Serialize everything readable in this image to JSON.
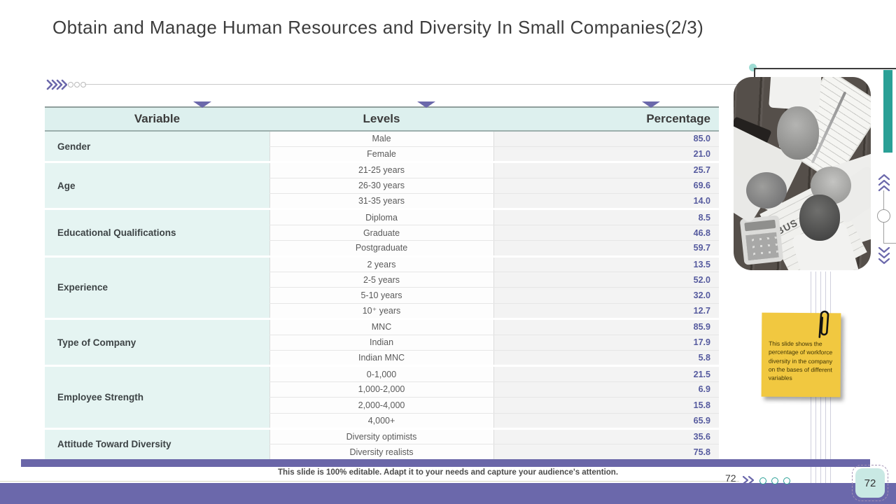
{
  "slide": {
    "title": "Obtain and Manage Human Resources and Diversity In Small Companies(2/3)",
    "footer_note": "This slide is 100% editable. Adapt it to your needs and capture your audience's attention.",
    "page_number": "72",
    "page_number_inline": "72"
  },
  "table": {
    "headers": [
      "Variable",
      "Levels",
      "Percentage"
    ],
    "groups": [
      {
        "variable": "Gender",
        "rows": [
          [
            "Male",
            "85.0"
          ],
          [
            "Female",
            "21.0"
          ]
        ]
      },
      {
        "variable": "Age",
        "rows": [
          [
            "21-25 years",
            "25.7"
          ],
          [
            "26-30 years",
            "69.6"
          ],
          [
            "31-35 years",
            "14.0"
          ]
        ]
      },
      {
        "variable": "Educational Qualifications",
        "rows": [
          [
            "Diploma",
            "8.5"
          ],
          [
            "Graduate",
            "46.8"
          ],
          [
            "Postgraduate",
            "59.7"
          ]
        ]
      },
      {
        "variable": "Experience",
        "rows": [
          [
            "2 years",
            "13.5"
          ],
          [
            "2-5 years",
            "52.0"
          ],
          [
            "5-10 years",
            "32.0"
          ],
          [
            "10⁺ years",
            "12.7"
          ]
        ]
      },
      {
        "variable": "Type of Company",
        "rows": [
          [
            "MNC",
            "85.9"
          ],
          [
            "Indian",
            "17.9"
          ],
          [
            "Indian MNC",
            "5.8"
          ]
        ]
      },
      {
        "variable": "Employee Strength",
        "rows": [
          [
            "0-1,000",
            "21.5"
          ],
          [
            "1,000-2,000",
            "6.9"
          ],
          [
            "2,000-4,000",
            "15.8"
          ],
          [
            "4,000+",
            "65.9"
          ]
        ]
      },
      {
        "variable": "Attitude Toward Diversity",
        "rows": [
          [
            "Diversity optimists",
            "35.6"
          ],
          [
            "Diversity realists",
            "75.8"
          ]
        ]
      }
    ]
  },
  "sticky_note": {
    "text": "This slide shows the percentage of workforce diversity in the company on the bases of different variables"
  },
  "news_label": "BUS",
  "icons": {
    "top_left": "chevrons-right-icon, three-circles-icon",
    "top_right": "teal-dot-connector-icon",
    "right_rail": "chevrons-up-icon, circle-node-icon, chevrons-down-icon",
    "note": "paperclip-icon",
    "footer": "double-chevron-right-icon, three-circles-icon"
  },
  "colors": {
    "accent_purple": "#6b68ab",
    "accent_teal": "#2aa096",
    "header_mint": "#ddf0ee",
    "variable_mint": "#e5f4f2",
    "percentage_text": "#555a9e",
    "note_yellow": "#f1c840",
    "page_box_fill": "#c9e9e4",
    "footer_bar": "#6b68ab"
  }
}
